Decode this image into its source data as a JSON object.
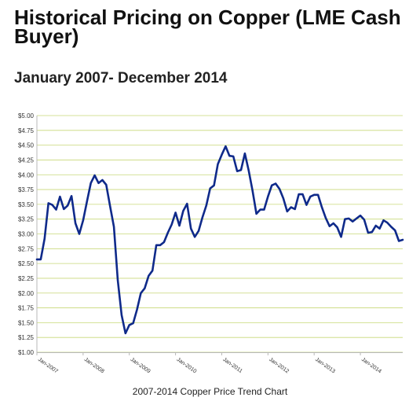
{
  "title": "Historical Pricing on Copper (LME Cash Buyer)",
  "subtitle": "January 2007- December 2014",
  "caption": "2007-2014 Copper Price Trend Chart",
  "chart_data": {
    "type": "line",
    "title": "Historical Pricing on Copper (LME Cash Buyer)",
    "subtitle": "January 2007- December 2014",
    "xlabel": "",
    "ylabel": "",
    "ylim": [
      1.0,
      5.0
    ],
    "yticks": [
      1.0,
      1.25,
      1.5,
      1.75,
      2.0,
      2.25,
      2.5,
      2.75,
      3.0,
      3.25,
      3.5,
      3.75,
      4.0,
      4.25,
      4.5,
      4.75,
      5.0
    ],
    "ytick_labels": [
      "$1.00",
      "$1.25",
      "$1.50",
      "$1.75",
      "$2.00",
      "$2.25",
      "$2.50",
      "$2.75",
      "$3.00",
      "$3.25",
      "$3.50",
      "$3.75",
      "$4.00",
      "$4.25",
      "$4.50",
      "$4.75",
      "$5.00"
    ],
    "xtick_labels": [
      "Jan-2007",
      "Jan-2008",
      "Jan-2009",
      "Jan-2010",
      "Jan-2011",
      "Jan-2012",
      "Jan-2013",
      "Jan-2014"
    ],
    "grid": true,
    "line_color": "#0f2a8a",
    "grid_color": "#c8d878",
    "series": [
      {
        "x": [
          "2007-01",
          "2007-02",
          "2007-03",
          "2007-04",
          "2007-05",
          "2007-06",
          "2007-07",
          "2007-08",
          "2007-09",
          "2007-10",
          "2007-11",
          "2007-12",
          "2008-01",
          "2008-02",
          "2008-03",
          "2008-04",
          "2008-05",
          "2008-06",
          "2008-07",
          "2008-08",
          "2008-09",
          "2008-10",
          "2008-11",
          "2008-12",
          "2009-01",
          "2009-02",
          "2009-03",
          "2009-04",
          "2009-05",
          "2009-06",
          "2009-07",
          "2009-08",
          "2009-09",
          "2009-10",
          "2009-11",
          "2009-12",
          "2010-01",
          "2010-02",
          "2010-03",
          "2010-04",
          "2010-05",
          "2010-06",
          "2010-07",
          "2010-08",
          "2010-09",
          "2010-10",
          "2010-11",
          "2010-12",
          "2011-01",
          "2011-02",
          "2011-03",
          "2011-04",
          "2011-05",
          "2011-06",
          "2011-07",
          "2011-08",
          "2011-09",
          "2011-10",
          "2011-11",
          "2011-12",
          "2012-01",
          "2012-02",
          "2012-03",
          "2012-04",
          "2012-05",
          "2012-06",
          "2012-07",
          "2012-08",
          "2012-09",
          "2012-10",
          "2012-11",
          "2012-12",
          "2013-01",
          "2013-02",
          "2013-03",
          "2013-04",
          "2013-05",
          "2013-06",
          "2013-07",
          "2013-08",
          "2013-09",
          "2013-10",
          "2013-11",
          "2013-12",
          "2014-01",
          "2014-02",
          "2014-03",
          "2014-04",
          "2014-05",
          "2014-06",
          "2014-07",
          "2014-08",
          "2014-09",
          "2014-10",
          "2014-11",
          "2014-12"
        ],
        "values": [
          2.57,
          2.57,
          2.92,
          3.52,
          3.49,
          3.41,
          3.63,
          3.42,
          3.48,
          3.64,
          3.18,
          3.0,
          3.23,
          3.55,
          3.86,
          3.99,
          3.86,
          3.91,
          3.83,
          3.47,
          3.12,
          2.22,
          1.63,
          1.32,
          1.46,
          1.49,
          1.72,
          2.0,
          2.08,
          2.29,
          2.38,
          2.81,
          2.81,
          2.86,
          3.02,
          3.16,
          3.36,
          3.14,
          3.39,
          3.51,
          3.09,
          2.95,
          3.05,
          3.28,
          3.48,
          3.77,
          3.82,
          4.18,
          4.34,
          4.48,
          4.32,
          4.31,
          4.06,
          4.08,
          4.36,
          4.07,
          3.73,
          3.34,
          3.41,
          3.41,
          3.63,
          3.82,
          3.85,
          3.76,
          3.6,
          3.38,
          3.45,
          3.42,
          3.67,
          3.67,
          3.49,
          3.63,
          3.66,
          3.66,
          3.45,
          3.27,
          3.13,
          3.18,
          3.11,
          2.95,
          3.25,
          3.26,
          3.21,
          3.26,
          3.31,
          3.24,
          3.02,
          3.03,
          3.14,
          3.09,
          3.23,
          3.19,
          3.12,
          3.06,
          2.88,
          2.9
        ]
      }
    ]
  }
}
